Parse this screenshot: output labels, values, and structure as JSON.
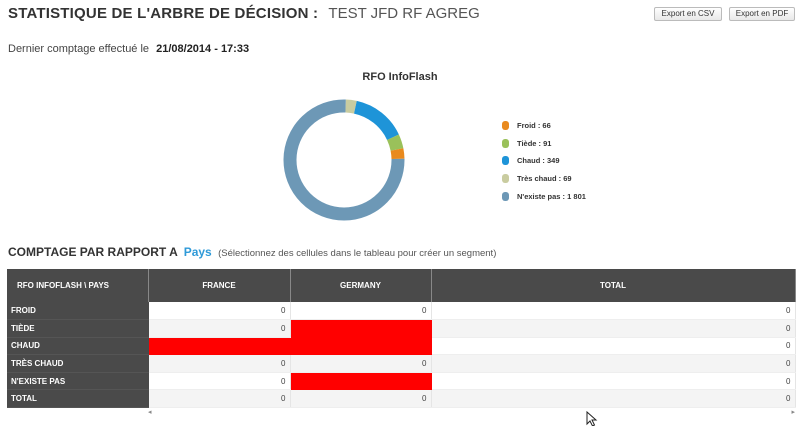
{
  "header": {
    "title_prefix": "STATISTIQUE DE L'ARBRE DE DÉCISION :",
    "title_name": "TEST JFD RF AGREG",
    "export_csv": "Export en CSV",
    "export_pdf": "Export en PDF"
  },
  "last_count": {
    "label": "Dernier comptage effectué le",
    "datetime": "21/08/2014 - 17:33"
  },
  "chart_data": {
    "type": "pie",
    "donut": true,
    "title": "RFO InfoFlash",
    "legend_position": "right",
    "slices": [
      {
        "label": "Froid",
        "value": 66,
        "color": "#e98a1e",
        "legend": "Froid : 66"
      },
      {
        "label": "Tiède",
        "value": 91,
        "color": "#9ac15a",
        "legend": "Tiède : 91"
      },
      {
        "label": "Chaud",
        "value": 349,
        "color": "#1e94d8",
        "legend": "Chaud : 349"
      },
      {
        "label": "Très chaud",
        "value": 69,
        "color": "#c9cca0",
        "legend": "Très chaud : 69"
      },
      {
        "label": "N'existe pas",
        "value": 1801,
        "color": "#6d98b6",
        "legend": "N'existe pas : 1 801"
      }
    ]
  },
  "section": {
    "title": "COMPTAGE PAR RAPPORT A",
    "dimension": "Pays",
    "hint": "(Sélectionnez des cellules dans le tableau pour créer un segment)"
  },
  "table": {
    "corner_header": "RFO INFOFLASH \\ PAYS",
    "columns": [
      "FRANCE",
      "GERMANY",
      "TOTAL"
    ],
    "highlight_color": "#ff0000",
    "rows": [
      {
        "label": "FROID",
        "values": [
          "0",
          "0",
          "0"
        ],
        "highlight": [
          false,
          false,
          false
        ]
      },
      {
        "label": "TIÈDE",
        "values": [
          "0",
          "",
          "0"
        ],
        "highlight": [
          false,
          true,
          false
        ]
      },
      {
        "label": "CHAUD",
        "values": [
          "",
          "",
          "0"
        ],
        "highlight": [
          true,
          true,
          false
        ]
      },
      {
        "label": "TRÈS CHAUD",
        "values": [
          "0",
          "0",
          "0"
        ],
        "highlight": [
          false,
          false,
          false
        ]
      },
      {
        "label": "N'EXISTE PAS",
        "values": [
          "0",
          "",
          "0"
        ],
        "highlight": [
          false,
          true,
          false
        ]
      },
      {
        "label": "TOTAL",
        "values": [
          "0",
          "0",
          "0"
        ],
        "highlight": [
          false,
          false,
          false
        ]
      }
    ]
  },
  "icons": {
    "scroll_left": "chevron-left-icon",
    "scroll_right": "chevron-right-icon",
    "cursor": "mouse-pointer-icon"
  }
}
